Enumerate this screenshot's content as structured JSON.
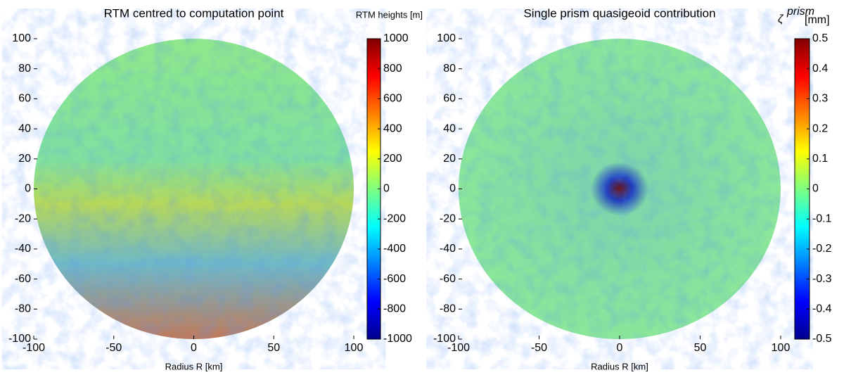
{
  "chart_data": [
    {
      "type": "heatmap",
      "title": "RTM centred to computation point",
      "xlabel": "Radius R [km]",
      "xlim": [
        -100,
        100
      ],
      "xticks": [
        -100,
        -50,
        0,
        50,
        100
      ],
      "ylim": [
        -100,
        100
      ],
      "yticks": [
        -100,
        -80,
        -60,
        -40,
        -20,
        0,
        20,
        40,
        60,
        80,
        100
      ],
      "colormap": "jet",
      "colorbar": {
        "label": "RTM heights [m]",
        "lim": [
          -1000,
          1000
        ],
        "ticks": [
          -1000,
          -800,
          -600,
          -400,
          -200,
          0,
          200,
          400,
          600,
          800,
          1000
        ]
      }
    },
    {
      "type": "heatmap",
      "title": "Single prism quasigeoid contribution",
      "xlabel": "Radius R [km]",
      "xlim": [
        -100,
        100
      ],
      "xticks": [
        -100,
        -50,
        0,
        50,
        100
      ],
      "ylim": [
        -100,
        100
      ],
      "yticks": [
        -100,
        -80,
        -60,
        -40,
        -20,
        0,
        20,
        40,
        60,
        80,
        100
      ],
      "colormap": "jet",
      "colorbar": {
        "label": "ζ",
        "label_sup": "prism",
        "label_unit": "[mm]",
        "lim": [
          -0.5,
          0.5
        ],
        "ticks": [
          -0.5,
          -0.4,
          -0.3,
          -0.2,
          -0.1,
          0,
          0.1,
          0.2,
          0.3,
          0.4,
          0.5
        ]
      }
    }
  ]
}
